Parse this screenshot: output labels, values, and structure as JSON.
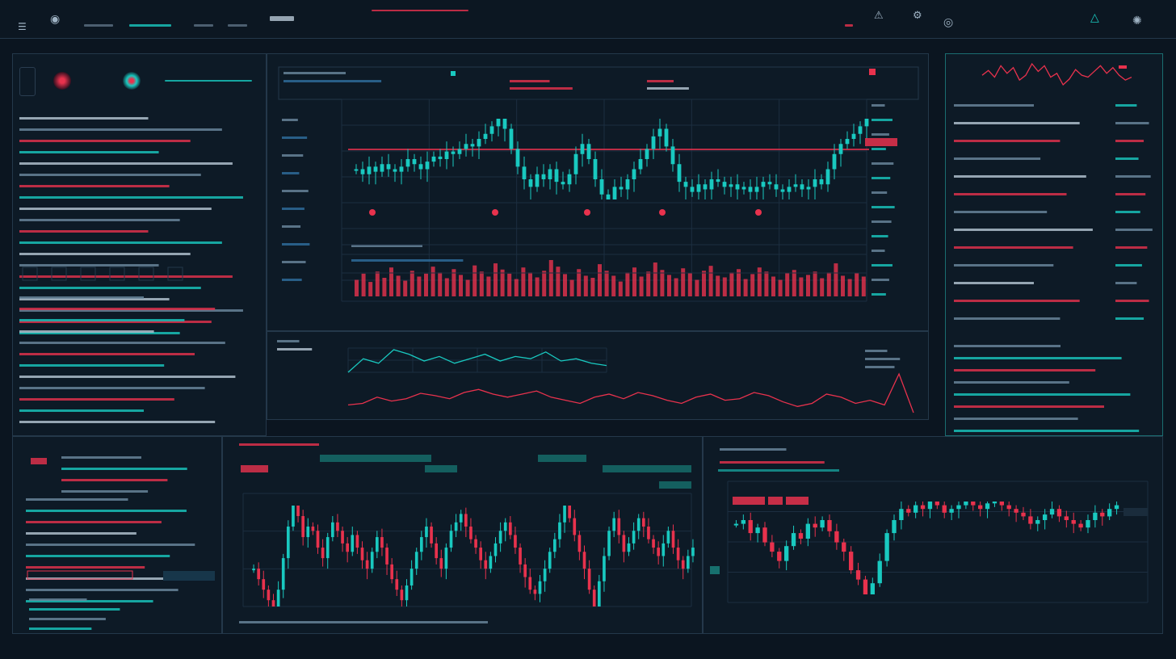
{
  "colors": {
    "background": "#0b1520",
    "panel": "#0d1a26",
    "border": "#24384a",
    "up": "#19c9c0",
    "down": "#e8324d"
  },
  "icons": [
    "menu-icon",
    "globe-icon",
    "user-icon",
    "settings-icon",
    "alert-icon",
    "network-icon"
  ],
  "chart_data": [
    {
      "type": "candlestick",
      "name": "",
      "values": [
        62,
        60,
        63,
        61,
        64,
        62,
        61,
        63,
        66,
        64,
        62,
        65,
        67,
        66,
        69,
        68,
        70,
        72,
        71,
        74,
        76,
        79,
        82,
        78,
        70,
        63,
        58,
        55,
        60,
        58,
        62,
        57,
        56,
        60,
        68,
        72,
        66,
        58,
        52,
        50,
        55,
        54,
        58,
        62,
        66,
        70,
        75,
        78,
        71,
        64,
        57,
        55,
        53,
        56,
        54,
        58,
        57,
        55,
        56,
        54,
        55,
        53,
        55,
        57,
        56,
        54,
        53,
        55,
        56,
        54,
        55,
        58,
        56,
        62,
        68,
        72,
        74,
        76,
        79,
        82
      ]
    },
    {
      "type": "bar",
      "name": "volume",
      "values": [
        40,
        55,
        35,
        60,
        45,
        70,
        50,
        38,
        62,
        48,
        55,
        72,
        58,
        44,
        66,
        52,
        40,
        75,
        60,
        48,
        80,
        65,
        55,
        42,
        70,
        58,
        46,
        62,
        88,
        72,
        54,
        40,
        66,
        50,
        45,
        78,
        62,
        50,
        36,
        58,
        70,
        48,
        60,
        82,
        64,
        52,
        44,
        68,
        56,
        40,
        62,
        74,
        50,
        46,
        58,
        66,
        42,
        54,
        70,
        60,
        48,
        40,
        56,
        64,
        46,
        52,
        60,
        44,
        58,
        80,
        50,
        42,
        56,
        48
      ]
    },
    {
      "type": "line",
      "name": "",
      "values": [
        50,
        62,
        58,
        70,
        66,
        60,
        64,
        58,
        62,
        66,
        60,
        64,
        62,
        68,
        60,
        62,
        58,
        56
      ]
    },
    {
      "type": "line",
      "name": "",
      "values": [
        20,
        22,
        30,
        25,
        28,
        35,
        32,
        28,
        36,
        40,
        34,
        30,
        34,
        38,
        30,
        26,
        22,
        30,
        34,
        28,
        36,
        32,
        26,
        22,
        30,
        34,
        26,
        28,
        36,
        32,
        24,
        18,
        22,
        34,
        30,
        22,
        26,
        20,
        60,
        10
      ]
    },
    {
      "type": "candlestick",
      "name": "",
      "values": [
        40,
        35,
        30,
        25,
        22,
        30,
        45,
        60,
        70,
        65,
        55,
        60,
        58,
        50,
        45,
        55,
        62,
        58,
        52,
        48,
        56,
        50,
        44,
        40,
        48,
        55,
        50,
        42,
        35,
        30,
        25,
        32,
        40,
        48,
        55,
        60,
        52,
        45,
        40,
        50,
        58,
        62,
        66,
        60,
        54,
        50,
        44,
        40,
        46,
        52,
        58,
        62,
        56,
        50,
        42,
        36,
        30,
        28,
        34,
        40,
        48,
        54,
        62,
        70,
        64,
        56,
        48,
        40,
        30,
        22,
        34,
        46,
        58,
        64,
        56,
        48,
        52,
        58,
        64,
        60,
        54,
        50,
        46,
        52,
        58,
        50,
        44,
        40,
        46,
        50
      ]
    },
    {
      "type": "candlestick",
      "name": "",
      "values": [
        60,
        62,
        55,
        58,
        50,
        45,
        40,
        48,
        55,
        52,
        60,
        58,
        62,
        56,
        50,
        45,
        35,
        30,
        22,
        28,
        40,
        55,
        62,
        68,
        66,
        70,
        68,
        72,
        70,
        66,
        68,
        70,
        72,
        70,
        68,
        71,
        72,
        70,
        68,
        66,
        64,
        60,
        62,
        65,
        68,
        64,
        62,
        60,
        58,
        62,
        66,
        64,
        68,
        70
      ]
    },
    {
      "type": "line",
      "name": "",
      "values": [
        60,
        65,
        58,
        70,
        62,
        68,
        55,
        60,
        72,
        64,
        70,
        58,
        62,
        50,
        56,
        66,
        60,
        58,
        64,
        70,
        62,
        68,
        60,
        55,
        58
      ]
    }
  ]
}
